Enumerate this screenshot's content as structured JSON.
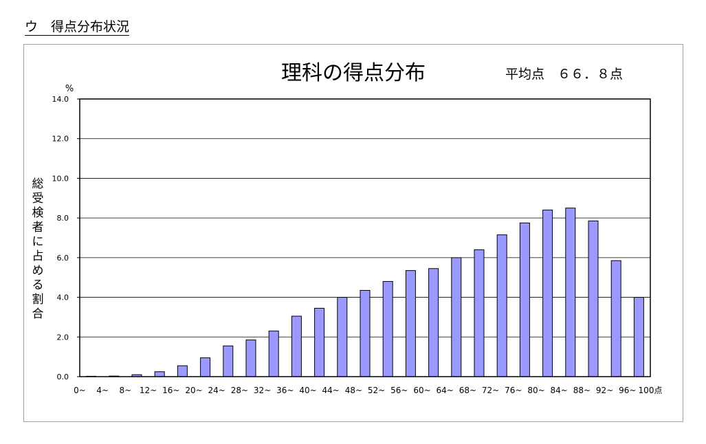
{
  "section_heading": "ウ　得点分布状況",
  "chart_data": {
    "type": "bar",
    "title": "理科の得点分布",
    "average_label": "平均点　６６．８点",
    "ylabel": "総受検者に占める割合",
    "yunit": "%",
    "xlabel": "",
    "ylim": [
      0,
      14
    ],
    "ytick_values": [
      0,
      2,
      4,
      6,
      8,
      10,
      12,
      14
    ],
    "ytick_labels": [
      "0.0",
      "2.0",
      "4.0",
      "6.0",
      "8.0",
      "10.0",
      "12.0",
      "14.0"
    ],
    "grid": true,
    "legend": "none",
    "bar_color": "#9999ff",
    "categories": [
      "0~4",
      "4~8",
      "8~12",
      "12~16",
      "16~20",
      "20~24",
      "24~28",
      "28~32",
      "32~36",
      "36~40",
      "40~44",
      "44~48",
      "48~52",
      "52~56",
      "56~60",
      "60~64",
      "64~68",
      "68~72",
      "72~76",
      "76~80",
      "80~84",
      "84~88",
      "88~92",
      "92~96",
      "96~100"
    ],
    "tick_labels": [
      "0~",
      "4~",
      "8~",
      "12~",
      "16~",
      "20~",
      "24~",
      "28~",
      "32~",
      "36~",
      "40~",
      "44~",
      "48~",
      "52~",
      "56~",
      "60~",
      "64~",
      "68~",
      "72~",
      "76~",
      "80~",
      "84~",
      "88~",
      "92~",
      "96~",
      "100点"
    ],
    "values": [
      0.02,
      0.03,
      0.1,
      0.25,
      0.55,
      0.95,
      1.55,
      1.85,
      2.3,
      3.05,
      3.45,
      4.0,
      4.35,
      4.8,
      5.35,
      5.45,
      6.0,
      6.4,
      7.15,
      7.75,
      8.4,
      8.5,
      7.85,
      5.85,
      4.0
    ]
  }
}
